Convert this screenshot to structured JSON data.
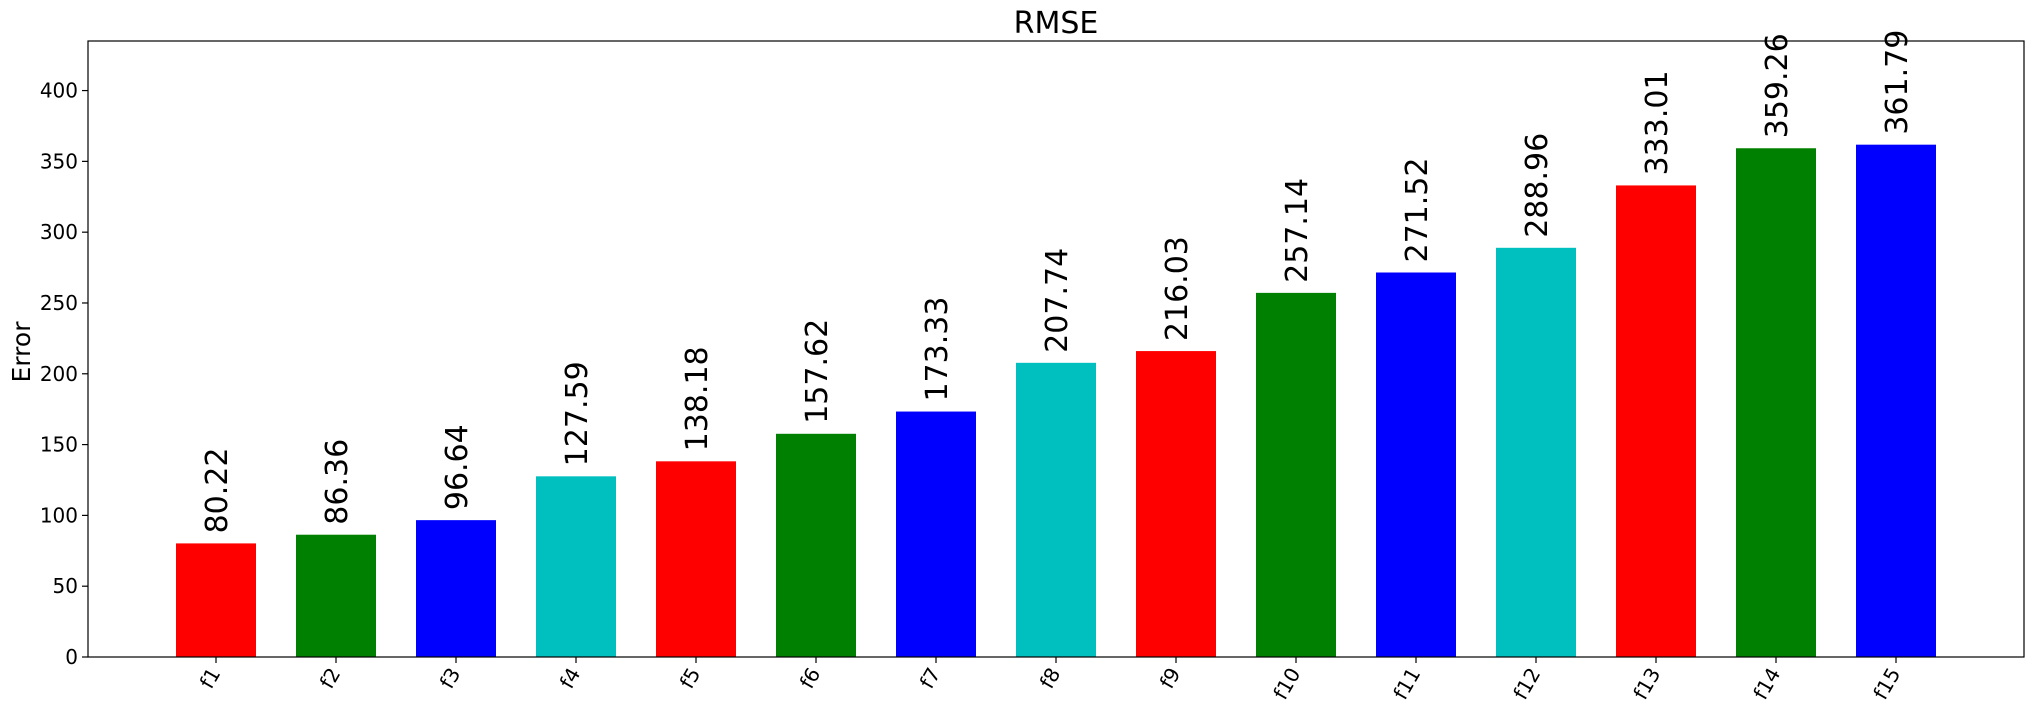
{
  "chart_data": {
    "type": "bar",
    "title": "RMSE",
    "xlabel": "",
    "ylabel": "Error",
    "categories": [
      "f1",
      "f2",
      "f3",
      "f4",
      "f5",
      "f6",
      "f7",
      "f8",
      "f9",
      "f10",
      "f11",
      "f12",
      "f13",
      "f14",
      "f15"
    ],
    "values": [
      80.22,
      86.36,
      96.64,
      127.59,
      138.18,
      157.62,
      173.33,
      207.74,
      216.03,
      257.14,
      271.52,
      288.96,
      333.01,
      359.26,
      361.79
    ],
    "value_labels": [
      "80.22",
      "86.36",
      "96.64",
      "127.59",
      "138.18",
      "157.62",
      "173.33",
      "207.74",
      "216.03",
      "257.14",
      "271.52",
      "288.96",
      "333.01",
      "359.26",
      "361.79"
    ],
    "bar_colors": [
      "#ff0000",
      "#008000",
      "#0000ff",
      "#00bfbf",
      "#ff0000",
      "#008000",
      "#0000ff",
      "#00bfbf",
      "#ff0000",
      "#008000",
      "#0000ff",
      "#00bfbf",
      "#ff0000",
      "#008000",
      "#0000ff"
    ],
    "ylim": [
      0,
      435
    ],
    "yticks": [
      0,
      50,
      100,
      150,
      200,
      250,
      300,
      350,
      400
    ],
    "ytick_labels": [
      "0",
      "50",
      "100",
      "150",
      "200",
      "250",
      "300",
      "350",
      "400"
    ],
    "x_tick_rotation": "60deg",
    "data_label_rotation": "90deg",
    "grid": false,
    "legend": "none"
  }
}
